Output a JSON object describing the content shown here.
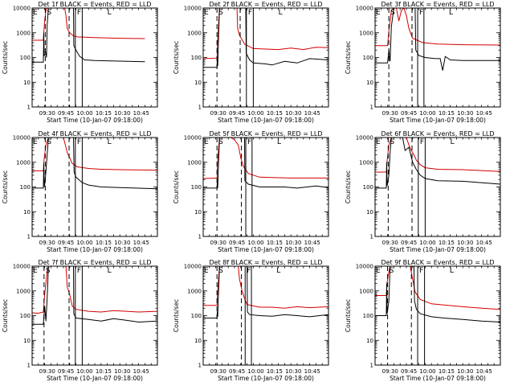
{
  "chart_data": {
    "type": "line",
    "layout": "3x3 grid of panels",
    "y_scale": "log",
    "ylim": [
      1,
      10000
    ],
    "y_ticks": [
      {
        "value": 1,
        "label": "1"
      },
      {
        "value": 10,
        "label": "10"
      },
      {
        "value": 100,
        "label": "100"
      },
      {
        "value": 1000,
        "label": "1000"
      },
      {
        "value": 10000,
        "label": "10000"
      }
    ],
    "xlim": [
      "09:18",
      "10:58"
    ],
    "x_ticks": [
      "09:30",
      "09:45",
      "10:00",
      "10:15",
      "10:30",
      "10:45"
    ],
    "ylabel": "Counts/sec",
    "xlabel": "Start Time (10-Jan-07 09:18:00)",
    "series_colors": {
      "events": "#000000",
      "lld": "#d40000"
    },
    "panels": [
      {
        "title": "Det 1f BLACK = Events, RED = LLD",
        "lld": [
          [
            0,
            500
          ],
          [
            4,
            500
          ],
          [
            9,
            500
          ],
          [
            9.3,
            1000
          ],
          [
            10,
            3000
          ],
          [
            11,
            8000
          ],
          [
            12,
            13000
          ],
          [
            26,
            13000
          ],
          [
            27,
            5000
          ],
          [
            28,
            1500
          ],
          [
            30,
            1000
          ],
          [
            33,
            750
          ],
          [
            36,
            680
          ],
          [
            50,
            640
          ],
          [
            70,
            600
          ],
          [
            90,
            580
          ]
        ],
        "events": [
          [
            0,
            65
          ],
          [
            9,
            65
          ],
          [
            9.3,
            1000
          ],
          [
            9.7,
            120
          ],
          [
            10.5,
            130
          ],
          [
            11,
            150
          ],
          [
            11.5,
            100
          ],
          [
            12,
            2000
          ],
          [
            13,
            13000
          ],
          [
            33,
            13000
          ],
          [
            33.3,
            300
          ],
          [
            35,
            200
          ],
          [
            38,
            110
          ],
          [
            42,
            80
          ],
          [
            50,
            75
          ],
          [
            90,
            68
          ]
        ],
        "dashed": [
          10.5,
          29.5
        ],
        "solid": [
          34.5,
          40
        ],
        "markers": [
          "E",
          "S",
          "F",
          "L"
        ]
      },
      {
        "title": "Det 2f BLACK = Events, RED = LLD",
        "lld": [
          [
            0,
            90
          ],
          [
            11,
            95
          ],
          [
            11.5,
            400
          ],
          [
            13,
            13000
          ],
          [
            27,
            13000
          ],
          [
            27.5,
            1500
          ],
          [
            29,
            800
          ],
          [
            33,
            350
          ],
          [
            40,
            230
          ],
          [
            50,
            220
          ],
          [
            60,
            210
          ],
          [
            70,
            240
          ],
          [
            80,
            210
          ],
          [
            90,
            260
          ],
          [
            100,
            250
          ]
        ],
        "events": [
          [
            0,
            40
          ],
          [
            11,
            40
          ],
          [
            11.3,
            110
          ],
          [
            11.6,
            45
          ],
          [
            12,
            250
          ],
          [
            13,
            13000
          ],
          [
            34,
            13000
          ],
          [
            34.3,
            150
          ],
          [
            37,
            80
          ],
          [
            40,
            60
          ],
          [
            50,
            55
          ],
          [
            55,
            50
          ],
          [
            65,
            70
          ],
          [
            75,
            60
          ],
          [
            85,
            90
          ],
          [
            100,
            80
          ]
        ],
        "dashed": [
          11,
          29.5
        ],
        "solid": [
          34.5,
          40
        ],
        "markers": [
          "E",
          "S",
          "F",
          "L"
        ]
      },
      {
        "title": "Det 3f BLACK = Events, RED = LLD",
        "lld": [
          [
            0,
            300
          ],
          [
            10,
            300
          ],
          [
            11,
            1200
          ],
          [
            13,
            8000
          ],
          [
            15,
            10000
          ],
          [
            17,
            13000
          ],
          [
            19,
            3000
          ],
          [
            21,
            8000
          ],
          [
            23,
            13000
          ],
          [
            25,
            5000
          ],
          [
            27,
            1500
          ],
          [
            30,
            600
          ],
          [
            38,
            400
          ],
          [
            50,
            350
          ],
          [
            70,
            330
          ],
          [
            100,
            320
          ]
        ],
        "events": [
          [
            0,
            60
          ],
          [
            10,
            60
          ],
          [
            11,
            200
          ],
          [
            12,
            70
          ],
          [
            13,
            1800
          ],
          [
            15,
            13000
          ],
          [
            32,
            13000
          ],
          [
            32.5,
            200
          ],
          [
            35,
            120
          ],
          [
            40,
            100
          ],
          [
            48,
            90
          ],
          [
            52,
            90
          ],
          [
            54,
            30
          ],
          [
            56,
            110
          ],
          [
            60,
            80
          ],
          [
            70,
            75
          ],
          [
            100,
            75
          ]
        ],
        "dashed": [
          11,
          29.5
        ],
        "solid": [
          34,
          39
        ],
        "markers": [
          "E",
          "S",
          "F",
          "L"
        ]
      },
      {
        "title": "Det 4f BLACK = Events, RED = LLD",
        "lld": [
          [
            0,
            450
          ],
          [
            9,
            450
          ],
          [
            9.5,
            1200
          ],
          [
            11,
            5000
          ],
          [
            13,
            13000
          ],
          [
            25,
            13000
          ],
          [
            28,
            2500
          ],
          [
            32,
            900
          ],
          [
            36,
            650
          ],
          [
            45,
            560
          ],
          [
            55,
            520
          ],
          [
            70,
            500
          ],
          [
            100,
            480
          ]
        ],
        "events": [
          [
            0,
            90
          ],
          [
            9,
            90
          ],
          [
            9.3,
            900
          ],
          [
            9.8,
            100
          ],
          [
            10.5,
            200
          ],
          [
            12,
            2000
          ],
          [
            13,
            13000
          ],
          [
            33,
            13000
          ],
          [
            33.5,
            400
          ],
          [
            35,
            250
          ],
          [
            40,
            150
          ],
          [
            45,
            120
          ],
          [
            55,
            100
          ],
          [
            70,
            95
          ],
          [
            100,
            85
          ]
        ],
        "dashed": [
          10.5,
          29.5
        ],
        "solid": [
          34.5,
          40
        ],
        "markers": [
          "E",
          "S",
          "F",
          "L"
        ]
      },
      {
        "title": "Det 5f BLACK = Events, RED = LLD",
        "lld": [
          [
            0,
            220
          ],
          [
            11,
            230
          ],
          [
            11.5,
            1000
          ],
          [
            13,
            13000
          ],
          [
            22,
            13000
          ],
          [
            25,
            8000
          ],
          [
            28,
            5000
          ],
          [
            30,
            1500
          ],
          [
            32,
            700
          ],
          [
            36,
            350
          ],
          [
            45,
            250
          ],
          [
            55,
            240
          ],
          [
            70,
            230
          ],
          [
            100,
            230
          ]
        ],
        "events": [
          [
            0,
            90
          ],
          [
            11,
            90
          ],
          [
            11.3,
            200
          ],
          [
            11.6,
            90
          ],
          [
            12,
            400
          ],
          [
            13,
            13000
          ],
          [
            33,
            13000
          ],
          [
            33.3,
            180
          ],
          [
            36,
            130
          ],
          [
            45,
            100
          ],
          [
            55,
            100
          ],
          [
            65,
            100
          ],
          [
            75,
            90
          ],
          [
            90,
            110
          ],
          [
            100,
            95
          ]
        ],
        "dashed": [
          11,
          30.5
        ],
        "solid": [
          34,
          39
        ],
        "markers": [
          "E",
          "S",
          "F",
          "L"
        ]
      },
      {
        "title": "Det 6f BLACK = Events, RED = LLD",
        "lld": [
          [
            0,
            400
          ],
          [
            9,
            400
          ],
          [
            9.5,
            1000
          ],
          [
            11,
            5000
          ],
          [
            13,
            13000
          ],
          [
            25,
            13000
          ],
          [
            27,
            5000
          ],
          [
            29,
            3000
          ],
          [
            31,
            2000
          ],
          [
            33,
            1200
          ],
          [
            36,
            800
          ],
          [
            40,
            600
          ],
          [
            50,
            520
          ],
          [
            70,
            500
          ],
          [
            100,
            420
          ]
        ],
        "events": [
          [
            0,
            90
          ],
          [
            9,
            90
          ],
          [
            9.3,
            1000
          ],
          [
            9.6,
            110
          ],
          [
            11,
            300
          ],
          [
            12,
            2500
          ],
          [
            13,
            13000
          ],
          [
            22,
            13000
          ],
          [
            24,
            3000
          ],
          [
            27,
            4000
          ],
          [
            30,
            1000
          ],
          [
            33,
            500
          ],
          [
            36,
            300
          ],
          [
            40,
            220
          ],
          [
            50,
            180
          ],
          [
            70,
            170
          ],
          [
            100,
            130
          ]
        ],
        "dashed": [
          10.5,
          29.5
        ],
        "solid": [
          34.5,
          40
        ],
        "markers": [
          "E",
          "S",
          "F",
          "L"
        ]
      },
      {
        "title": "Det 7f BLACK = Events, RED = LLD",
        "lld": [
          [
            0,
            130
          ],
          [
            5,
            125
          ],
          [
            9,
            140
          ],
          [
            10,
            700
          ],
          [
            12,
            6000
          ],
          [
            13,
            13000
          ],
          [
            27,
            13000
          ],
          [
            28,
            1500
          ],
          [
            30,
            700
          ],
          [
            32,
            250
          ],
          [
            35,
            180
          ],
          [
            45,
            150
          ],
          [
            55,
            140
          ],
          [
            65,
            160
          ],
          [
            75,
            150
          ],
          [
            85,
            140
          ],
          [
            100,
            150
          ]
        ],
        "events": [
          [
            0,
            45
          ],
          [
            9,
            45
          ],
          [
            10,
            250
          ],
          [
            11,
            60
          ],
          [
            12,
            500
          ],
          [
            13,
            13000
          ],
          [
            33,
            13000
          ],
          [
            33.3,
            120
          ],
          [
            35,
            80
          ],
          [
            45,
            70
          ],
          [
            55,
            60
          ],
          [
            65,
            75
          ],
          [
            75,
            65
          ],
          [
            85,
            55
          ],
          [
            100,
            60
          ]
        ],
        "dashed": [
          9.5,
          29.5
        ],
        "solid": [
          34.5,
          40
        ],
        "markers": [
          "E",
          "S",
          "F",
          "L"
        ]
      },
      {
        "title": "Det 8f BLACK = Events, RED = LLD",
        "lld": [
          [
            0,
            260
          ],
          [
            11,
            260
          ],
          [
            11.5,
            800
          ],
          [
            13,
            13000
          ],
          [
            28,
            13000
          ],
          [
            29,
            3000
          ],
          [
            31,
            1000
          ],
          [
            33,
            500
          ],
          [
            35,
            280
          ],
          [
            45,
            220
          ],
          [
            55,
            220
          ],
          [
            65,
            200
          ],
          [
            75,
            230
          ],
          [
            85,
            210
          ],
          [
            100,
            230
          ]
        ],
        "events": [
          [
            0,
            80
          ],
          [
            11,
            80
          ],
          [
            11.3,
            150
          ],
          [
            11.6,
            90
          ],
          [
            12,
            400
          ],
          [
            13,
            13000
          ],
          [
            35,
            13000
          ],
          [
            35.3,
            140
          ],
          [
            37,
            110
          ],
          [
            45,
            100
          ],
          [
            55,
            95
          ],
          [
            65,
            110
          ],
          [
            75,
            100
          ],
          [
            85,
            90
          ],
          [
            100,
            110
          ]
        ],
        "dashed": [
          11,
          30.5
        ],
        "solid": [
          33.5,
          38.5
        ],
        "markers": [
          "E",
          "S",
          "F",
          "L"
        ]
      },
      {
        "title": "Det 9f BLACK = Events, RED = LLD",
        "lld": [
          [
            0,
            650
          ],
          [
            9,
            650
          ],
          [
            9.5,
            2000
          ],
          [
            11,
            6000
          ],
          [
            12,
            13000
          ],
          [
            28,
            13000
          ],
          [
            30,
            3000
          ],
          [
            32,
            900
          ],
          [
            36,
            450
          ],
          [
            45,
            300
          ],
          [
            55,
            270
          ],
          [
            70,
            230
          ],
          [
            85,
            200
          ],
          [
            100,
            180
          ]
        ],
        "events": [
          [
            0,
            100
          ],
          [
            9,
            100
          ],
          [
            9.3,
            2000
          ],
          [
            9.6,
            120
          ],
          [
            11,
            400
          ],
          [
            12,
            13000
          ],
          [
            31,
            13000
          ],
          [
            31.5,
            400
          ],
          [
            33,
            180
          ],
          [
            36,
            120
          ],
          [
            45,
            90
          ],
          [
            55,
            80
          ],
          [
            70,
            70
          ],
          [
            85,
            60
          ],
          [
            100,
            55
          ]
        ],
        "dashed": [
          10,
          29
        ],
        "solid": [
          34,
          39.5
        ],
        "markers": [
          "E",
          "S",
          "F",
          "L"
        ]
      }
    ]
  }
}
